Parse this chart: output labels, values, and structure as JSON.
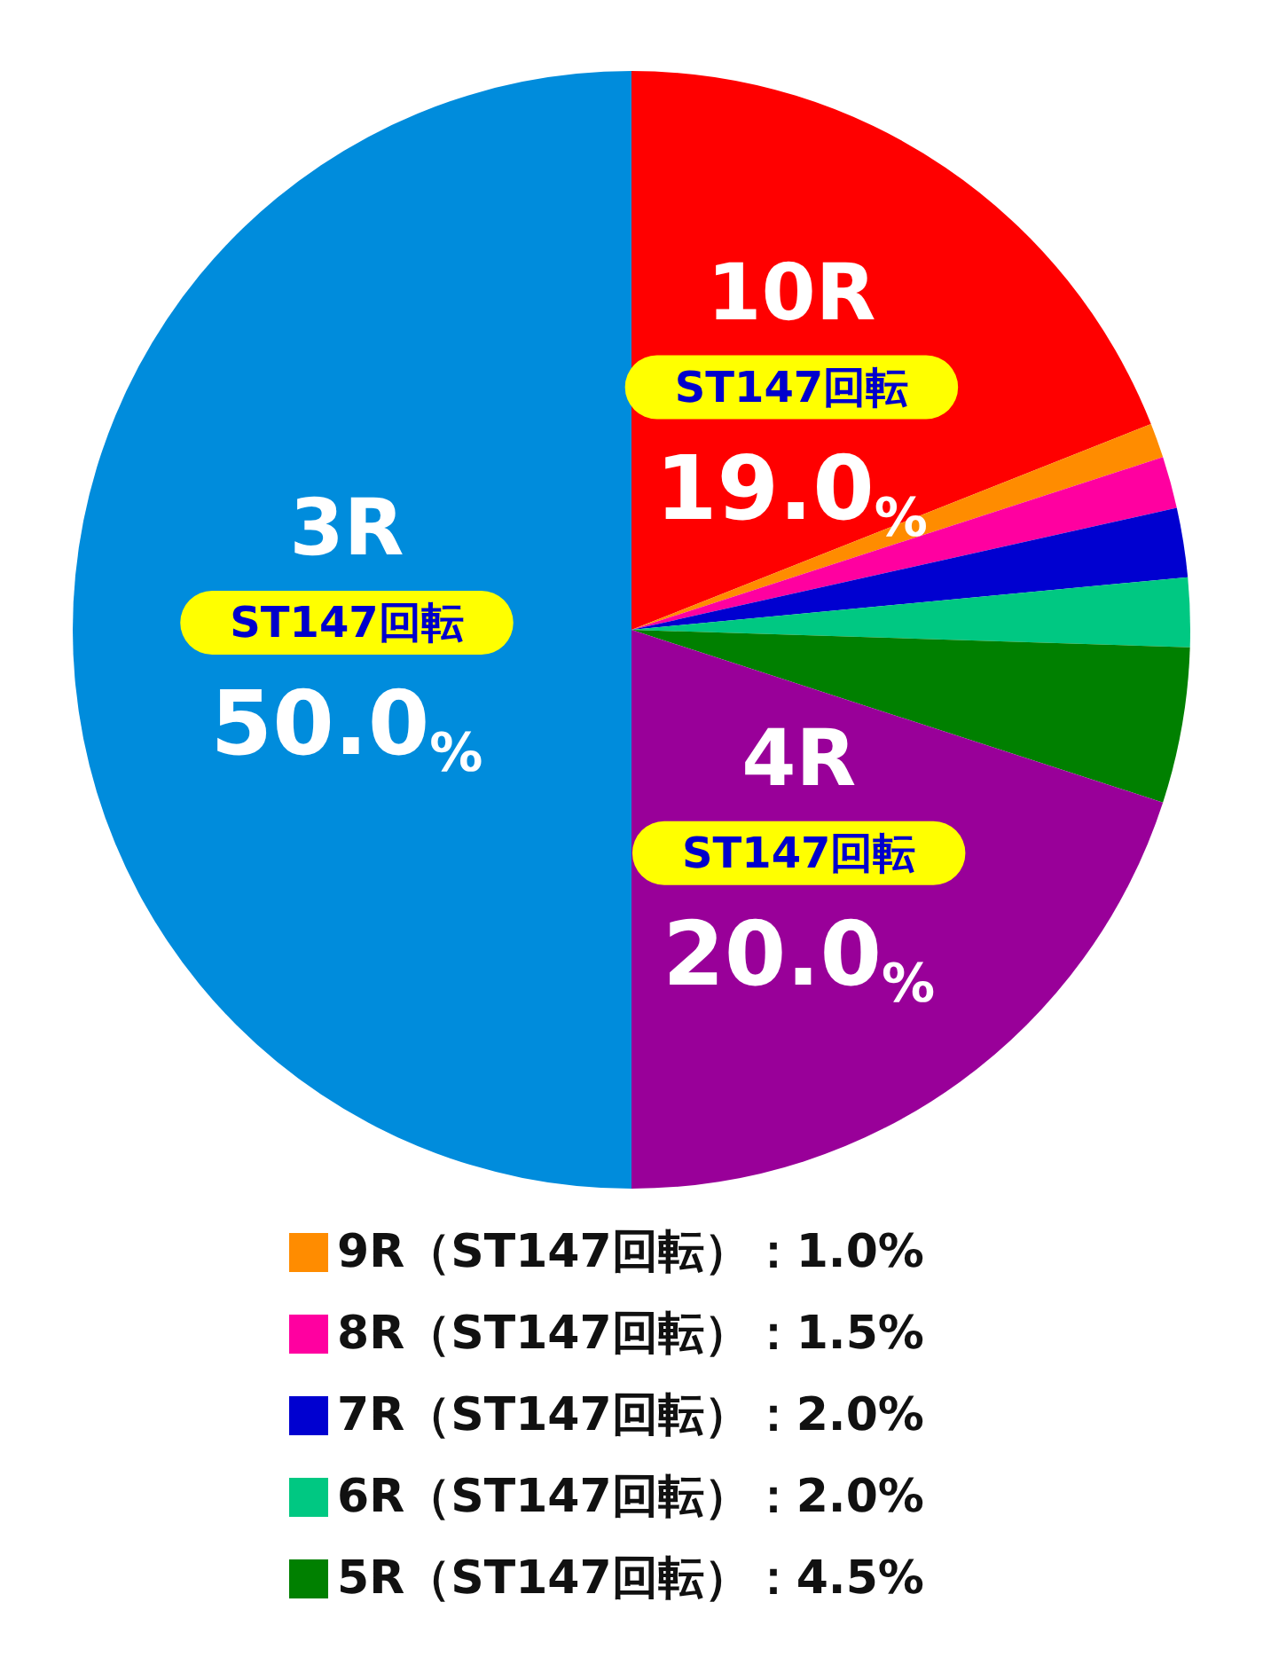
{
  "chart_data": {
    "type": "pie",
    "categories": [
      "10R",
      "9R（ST147回転）：1.0%",
      "8R（ST147回転）：1.5%",
      "7R（ST147回転）：2.0%",
      "6R（ST147回転）：2.0%",
      "5R（ST147回転）：4.5%",
      "4R",
      "3R"
    ],
    "values": [
      19.0,
      1.0,
      1.5,
      2.0,
      2.0,
      4.5,
      20.0,
      50.0
    ],
    "colors": [
      "#ff0000",
      "#ff8c00",
      "#ff00a0",
      "#0000d0",
      "#00c882",
      "#008000",
      "#990099",
      "#008cdc"
    ],
    "value_labels": [
      "19.0%",
      null,
      null,
      null,
      null,
      null,
      "20.0%",
      "50.0%"
    ],
    "annotations": [
      "ST147回転"
    ],
    "legend": "bottom"
  }
}
